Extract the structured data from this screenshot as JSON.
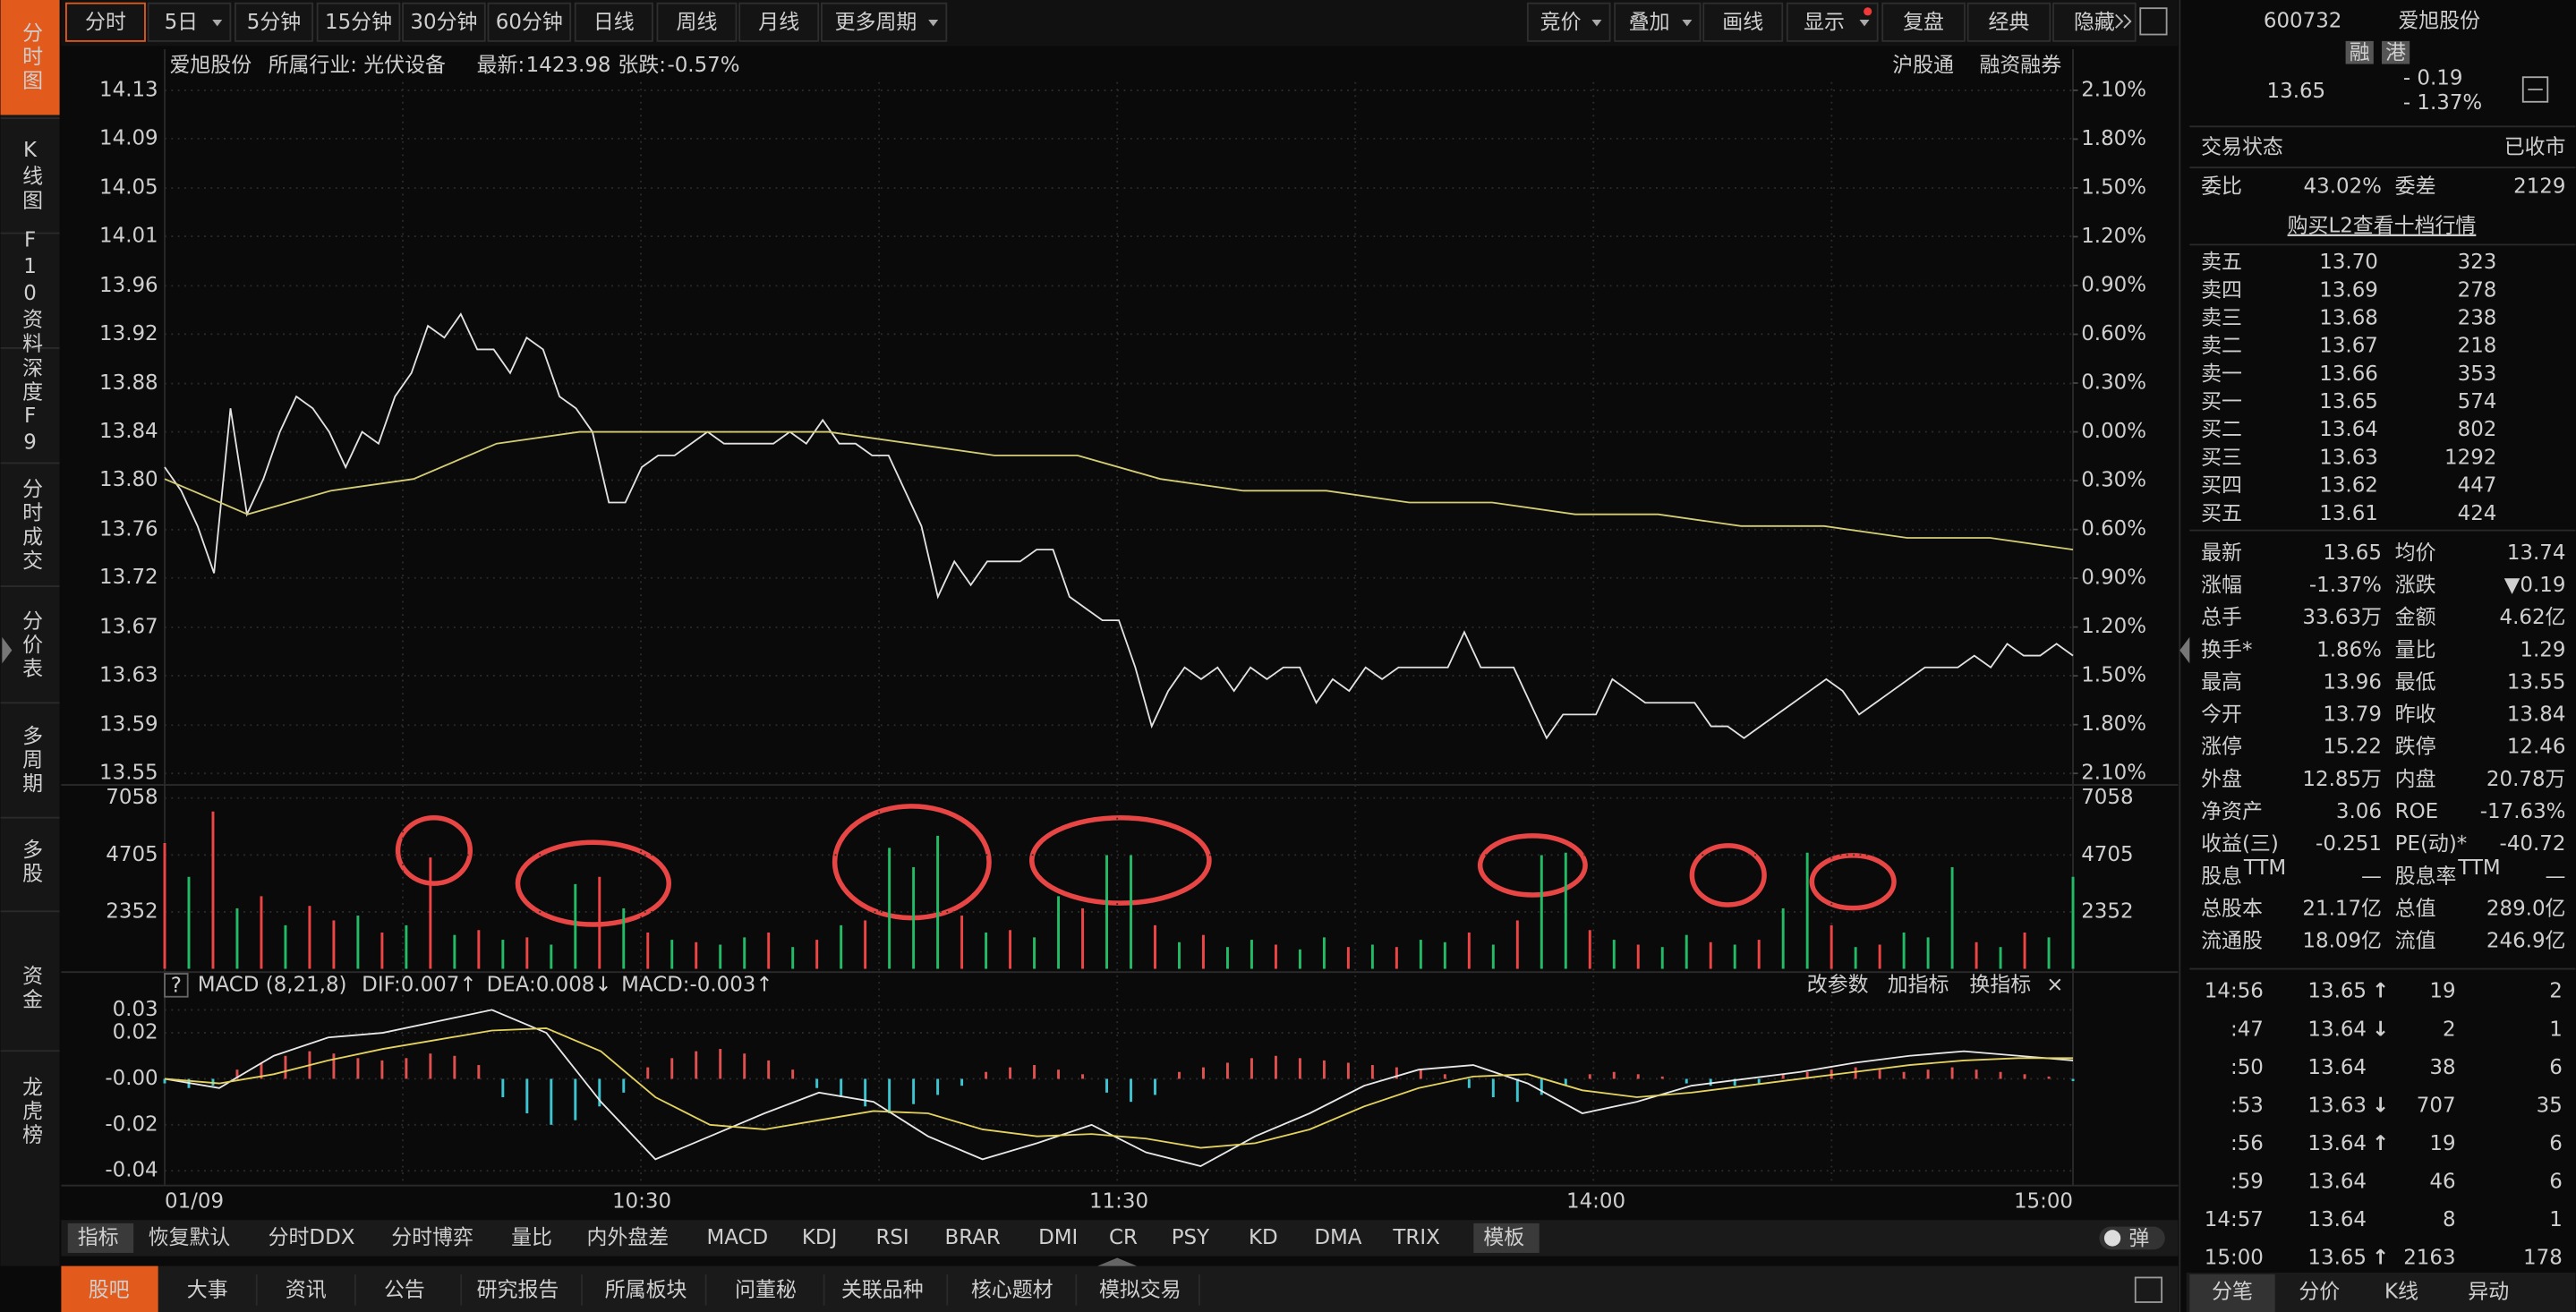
{
  "sidebar": {
    "tabs": [
      "分时图",
      "K线图",
      "F10资料",
      "深度F9",
      "分时成交",
      "分价表",
      "多周期",
      "多股",
      "资金",
      "龙虎榜"
    ]
  },
  "toolbar": {
    "periods": [
      "分时",
      "5日",
      "5分钟",
      "15分钟",
      "30分钟",
      "60分钟",
      "日线",
      "周线",
      "月线",
      "更多周期"
    ],
    "tools": [
      "竞价",
      "叠加",
      "画线",
      "显示",
      "复盘",
      "经典",
      "隐藏"
    ]
  },
  "info_bar": {
    "stock_name": "爱旭股份",
    "industry": "所属行业: 光伏设备",
    "latest_label": "最新:",
    "latest_value": "1423.98",
    "change_label": "张跌:",
    "change_value": "-0.57%",
    "links": [
      "沪股通",
      "融资融券"
    ]
  },
  "chart_data": [
    {
      "type": "line",
      "x_labels": [
        "01/09",
        "10:30",
        "11:30",
        "14:00",
        "15:00"
      ],
      "series": [
        {
          "color": "#e2e2e2",
          "values": [
            13.81,
            13.79,
            13.76,
            13.72,
            13.86,
            13.77,
            13.8,
            13.84,
            13.87,
            13.86,
            13.84,
            13.81,
            13.84,
            13.83,
            13.87,
            13.89,
            13.93,
            13.92,
            13.94,
            13.91,
            13.91,
            13.89,
            13.92,
            13.91,
            13.87,
            13.86,
            13.84,
            13.78,
            13.78,
            13.81,
            13.82,
            13.82,
            13.83,
            13.84,
            13.83,
            13.83,
            13.83,
            13.83,
            13.84,
            13.83,
            13.85,
            13.83,
            13.83,
            13.82,
            13.82,
            13.79,
            13.76,
            13.7,
            13.73,
            13.71,
            13.73,
            13.73,
            13.73,
            13.74,
            13.74,
            13.7,
            13.69,
            13.68,
            13.68,
            13.64,
            13.59,
            13.62,
            13.64,
            13.63,
            13.64,
            13.62,
            13.64,
            13.63,
            13.64,
            13.64,
            13.61,
            13.63,
            13.62,
            13.64,
            13.63,
            13.64,
            13.64,
            13.64,
            13.64,
            13.67,
            13.64,
            13.64,
            13.64,
            13.61,
            13.58,
            13.6,
            13.6,
            13.6,
            13.63,
            13.62,
            13.61,
            13.61,
            13.61,
            13.61,
            13.59,
            13.59,
            13.58,
            13.59,
            13.6,
            13.61,
            13.62,
            13.63,
            13.62,
            13.6,
            13.61,
            13.62,
            13.63,
            13.64,
            13.64,
            13.64,
            13.65,
            13.64,
            13.66,
            13.65,
            13.65,
            13.66,
            13.65
          ]
        },
        {
          "color": "#d4cd74",
          "values": [
            13.8,
            13.77,
            13.79,
            13.8,
            13.83,
            13.84,
            13.84,
            13.84,
            13.84,
            13.83,
            13.82,
            13.82,
            13.8,
            13.79,
            13.79,
            13.78,
            13.78,
            13.77,
            13.77,
            13.76,
            13.76,
            13.75,
            13.75,
            13.74
          ]
        }
      ],
      "ylim": [
        13.55,
        14.13
      ],
      "yticks": [
        {
          "value": 13.55,
          "label": "13.55"
        },
        {
          "value": 13.591,
          "label": "13.59"
        },
        {
          "value": 13.633,
          "label": "13.63"
        },
        {
          "value": 13.674,
          "label": "13.67"
        },
        {
          "value": 13.716,
          "label": "13.72"
        },
        {
          "value": 13.757,
          "label": "13.76"
        },
        {
          "value": 13.799,
          "label": "13.80"
        },
        {
          "value": 13.84,
          "label": "13.84"
        },
        {
          "value": 13.881,
          "label": "13.88"
        },
        {
          "value": 13.923,
          "label": "13.92"
        },
        {
          "value": 13.964,
          "label": "13.96"
        },
        {
          "value": 14.006,
          "label": "14.01"
        },
        {
          "value": 14.047,
          "label": "14.05"
        },
        {
          "value": 14.089,
          "label": "14.09"
        },
        {
          "value": 14.13,
          "label": "14.13"
        }
      ],
      "y2lim": [
        -2.1,
        2.1
      ],
      "y2ticks": [
        {
          "value": -2.1,
          "label": "2.10%"
        },
        {
          "value": -1.8,
          "label": "1.80%"
        },
        {
          "value": -1.5,
          "label": "1.50%"
        },
        {
          "value": -1.2,
          "label": "1.20%"
        },
        {
          "value": -0.9,
          "label": "0.90%"
        },
        {
          "value": -0.6,
          "label": "0.60%"
        },
        {
          "value": -0.3,
          "label": "0.30%"
        },
        {
          "value": 0,
          "label": "0.00%"
        },
        {
          "value": 0.3,
          "label": "0.30%"
        },
        {
          "value": 0.6,
          "label": "0.60%"
        },
        {
          "value": 0.9,
          "label": "0.90%"
        },
        {
          "value": 1.2,
          "label": "1.20%"
        },
        {
          "value": 1.5,
          "label": "1.50%"
        },
        {
          "value": 1.8,
          "label": "1.80%"
        },
        {
          "value": 2.1,
          "label": "2.10%"
        }
      ],
      "grid": true
    },
    {
      "type": "bar",
      "values": [
        5200,
        3800,
        6500,
        2500,
        3000,
        1800,
        2600,
        2000,
        2200,
        1500,
        1800,
        4600,
        1400,
        1600,
        1200,
        1300,
        1000,
        3500,
        3800,
        2500,
        1500,
        1200,
        1100,
        1000,
        1300,
        1500,
        900,
        1200,
        1800,
        2000,
        5000,
        4200,
        5500,
        2200,
        1500,
        1600,
        1300,
        3000,
        2500,
        4700,
        4700,
        1800,
        1100,
        1400,
        900,
        1200,
        1000,
        800,
        1300,
        900,
        1000,
        900,
        1200,
        1100,
        1500,
        1000,
        2000,
        4700,
        4800,
        1600,
        1200,
        1000,
        900,
        1400,
        1100,
        1000,
        1200,
        2500,
        4800,
        1800,
        900,
        1000,
        1500,
        1300,
        4200,
        1100,
        900,
        1500,
        1300,
        3800
      ],
      "colors": [
        "#e44",
        "#2b6",
        "#e44",
        "#2b6",
        "#e44",
        "#2b6",
        "#e44",
        "#e44",
        "#2b6",
        "#e44",
        "#2b6",
        "#e44",
        "#2b6",
        "#e44",
        "#2b6",
        "#e44",
        "#2b6",
        "#2b6",
        "#e44",
        "#2b6",
        "#e44",
        "#2b6",
        "#e44",
        "#2b6",
        "#2b6",
        "#e44",
        "#2b6",
        "#e44",
        "#2b6",
        "#e44",
        "#2b6",
        "#2b6",
        "#2b6",
        "#e44",
        "#2b6",
        "#e44",
        "#2b6",
        "#2b6",
        "#e44",
        "#2b6",
        "#2b6",
        "#e44",
        "#2b6",
        "#e44",
        "#2b6",
        "#2b6",
        "#e44",
        "#2b6",
        "#2b6",
        "#e44",
        "#2b6",
        "#e44",
        "#2b6",
        "#2b6",
        "#e44",
        "#2b6",
        "#e44",
        "#2b6",
        "#2b6",
        "#e44",
        "#2b6",
        "#e44",
        "#2b6",
        "#2b6",
        "#e44",
        "#2b6",
        "#e44",
        "#2b6",
        "#2b6",
        "#e44",
        "#2b6",
        "#e44",
        "#2b6",
        "#2b6",
        "#2b6",
        "#e44",
        "#2b6",
        "#e44",
        "#2b6",
        "#2b6"
      ],
      "ylim": [
        0,
        7058
      ],
      "yticks": [
        2352,
        4705,
        7058
      ],
      "grid": true
    },
    {
      "type": "macd",
      "values": [
        -0.002,
        -0.004,
        -0.003,
        0.004,
        0.007,
        0.01,
        0.012,
        0.011,
        0.009,
        0.008,
        0.009,
        0.011,
        0.01,
        0.006,
        -0.008,
        -0.015,
        -0.02,
        -0.018,
        -0.012,
        -0.006,
        0.005,
        0.009,
        0.012,
        0.013,
        0.011,
        0.008,
        0.004,
        -0.004,
        -0.008,
        -0.012,
        -0.015,
        -0.011,
        -0.007,
        -0.003,
        0.003,
        0.005,
        0.006,
        0.004,
        0.002,
        -0.006,
        -0.01,
        -0.007,
        0.003,
        0.005,
        0.007,
        0.009,
        0.01,
        0.009,
        0.008,
        0.007,
        0.006,
        0.005,
        0.004,
        0.002,
        -0.004,
        -0.008,
        -0.01,
        -0.007,
        -0.003,
        0.002,
        0.003,
        0.002,
        0.001,
        -0.002,
        -0.003,
        -0.003,
        -0.002,
        0.002,
        0.003,
        0.004,
        0.005,
        0.004,
        0.003,
        0.004,
        0.005,
        0.004,
        0.003,
        0.002,
        0.001,
        -0.001
      ],
      "series": [
        {
          "color": "#e8e8e8",
          "values": [
            0,
            -0.004,
            0.01,
            0.018,
            0.02,
            0.025,
            0.03,
            0.02,
            -0.01,
            -0.035,
            -0.025,
            -0.015,
            -0.006,
            -0.01,
            -0.025,
            -0.035,
            -0.028,
            -0.02,
            -0.032,
            -0.038,
            -0.025,
            -0.015,
            -0.003,
            0.004,
            0.006,
            -0.002,
            -0.015,
            -0.01,
            -0.003,
            0,
            0.003,
            0.007,
            0.01,
            0.012,
            0.01,
            0.008
          ]
        },
        {
          "color": "#e3d25e",
          "values": [
            0,
            -0.002,
            0.002,
            0.008,
            0.013,
            0.017,
            0.021,
            0.022,
            0.012,
            -0.008,
            -0.02,
            -0.022,
            -0.018,
            -0.014,
            -0.015,
            -0.022,
            -0.025,
            -0.024,
            -0.026,
            -0.03,
            -0.028,
            -0.022,
            -0.012,
            -0.004,
            0.001,
            0.002,
            -0.005,
            -0.008,
            -0.006,
            -0.003,
            0,
            0.003,
            0.006,
            0.008,
            0.009,
            0.009
          ]
        }
      ],
      "ylim": [
        -0.045,
        0.035
      ],
      "yticks": [
        0.03,
        0.02,
        {
          "value": 0,
          "label": "-0.00"
        },
        -0.02,
        -0.04
      ],
      "grid": true
    }
  ],
  "macd_header": {
    "help": "?",
    "name": "MACD (8,21,8)",
    "dif": "DIF:0.007↑",
    "dea": "DEA:0.008↓",
    "macd": "MACD:-0.003↑",
    "actions": [
      "改参数",
      "加指标",
      "换指标",
      "×"
    ]
  },
  "indicator_bar": {
    "items": [
      "指标",
      "恢复默认",
      "分时DDX",
      "分时博弈",
      "量比",
      "内外盘差",
      "MACD",
      "KDJ",
      "RSI",
      "BRAR",
      "DMI",
      "CR",
      "PSY",
      "KD",
      "DMA",
      "TRIX",
      "模板"
    ],
    "popup": "弹"
  },
  "bottom_bar": {
    "tabs": [
      "股吧",
      "大事",
      "资讯",
      "公告",
      "研究报告",
      "所属板块",
      "问董秘",
      "关联品种",
      "核心题材",
      "模拟交易"
    ]
  },
  "quote_panel": {
    "code": "600732",
    "name": "爱旭股份",
    "badges": [
      "融",
      "港"
    ],
    "price": "13.65",
    "change": "- 0.19",
    "change_pct": "- 1.37%",
    "status_label": "交易状态",
    "status": "已收市",
    "ratio_label": "委比",
    "ratio": "43.02%",
    "diff_label": "委差",
    "diff": "2129",
    "l2_link": "购买L2查看十档行情",
    "order_book": [
      {
        "label": "卖五",
        "price": "13.70",
        "volume": "323"
      },
      {
        "label": "卖四",
        "price": "13.69",
        "volume": "278"
      },
      {
        "label": "卖三",
        "price": "13.68",
        "volume": "238"
      },
      {
        "label": "卖二",
        "price": "13.67",
        "volume": "218"
      },
      {
        "label": "卖一",
        "price": "13.66",
        "volume": "353"
      },
      {
        "label": "买一",
        "price": "13.65",
        "volume": "574"
      },
      {
        "label": "买二",
        "price": "13.64",
        "volume": "802"
      },
      {
        "label": "买三",
        "price": "13.63",
        "volume": "1292"
      },
      {
        "label": "买四",
        "price": "13.62",
        "volume": "447"
      },
      {
        "label": "买五",
        "price": "13.61",
        "volume": "424"
      }
    ],
    "stats": [
      [
        {
          "label": "最新",
          "value": "13.65",
          "color": "#2fd35f"
        },
        {
          "label": "均价",
          "value": "13.74",
          "color": "#2fd35f"
        }
      ],
      [
        {
          "label": "涨幅",
          "value": "-1.37%",
          "color": "#2fd35f"
        },
        {
          "label": "涨跌",
          "value": "▼0.19",
          "color": "#2fd35f"
        }
      ],
      [
        {
          "label": "总手",
          "value": "33.63万",
          "color": "#f0d04a"
        },
        {
          "label": "金额",
          "value": "4.62亿",
          "color": "#33d6f0"
        }
      ],
      [
        {
          "label": "换手*",
          "value": "1.86%",
          "color": "#e8e8e8"
        },
        {
          "label": "量比",
          "value": "1.29",
          "color": "#f04a4a"
        }
      ],
      [
        {
          "label": "最高",
          "value": "13.96",
          "color": "#f04a4a"
        },
        {
          "label": "最低",
          "value": "13.55",
          "color": "#2fd35f"
        }
      ],
      [
        {
          "label": "今开",
          "value": "13.79",
          "color": "#2fd35f"
        },
        {
          "label": "昨收",
          "value": "13.84",
          "color": "#e8e8e8"
        }
      ],
      [
        {
          "label": "涨停",
          "value": "15.22",
          "color": "#f04a4a"
        },
        {
          "label": "跌停",
          "value": "12.46",
          "color": "#2fd35f"
        }
      ],
      [
        {
          "label": "外盘",
          "value": "12.85万",
          "color": "#f04a4a"
        },
        {
          "label": "内盘",
          "value": "20.78万",
          "color": "#2fd35f"
        }
      ],
      [
        {
          "label": "净资产",
          "value": "3.06",
          "color": "#e8e8e8"
        },
        {
          "label": "ROE",
          "value": "-17.63%",
          "color": "#e8e8e8"
        }
      ],
      [
        {
          "label": "收益(三)",
          "value": "-0.251",
          "color": "#e8e8e8"
        },
        {
          "label": "PE(动)*",
          "value": "-40.72",
          "color": "#e8e8e8"
        }
      ],
      [
        {
          "label": "股息",
          "sup": "TTM",
          "value": "—",
          "color": "#e8e8e8"
        },
        {
          "label": "股息率",
          "sup": "TTM",
          "value": "—",
          "color": "#e8e8e8"
        }
      ],
      [
        {
          "label": "总股本",
          "value": "21.17亿",
          "color": "#e8e8e8"
        },
        {
          "label": "总值",
          "value": "289.0亿",
          "color": "#e8e8e8"
        }
      ],
      [
        {
          "label": "流通股",
          "value": "18.09亿",
          "color": "#e8e8e8"
        },
        {
          "label": "流值",
          "value": "246.9亿",
          "color": "#e8e8e8"
        }
      ]
    ],
    "trades": [
      {
        "time": "14:56",
        "price": "13.65",
        "arrow": "↑",
        "volume": "19",
        "volume_color": "#f04a4a",
        "count": "2"
      },
      {
        "time": ":47",
        "price": "13.64",
        "arrow": "↓",
        "volume": "2",
        "volume_color": "#2fd35f",
        "count": "1"
      },
      {
        "time": ":50",
        "price": "13.64",
        "volume": "38",
        "volume_color": "#2fd35f",
        "count": "6"
      },
      {
        "time": ":53",
        "price": "13.63",
        "arrow": "↓",
        "volume": "707",
        "volume_color": "#2fd35f",
        "count": "35"
      },
      {
        "time": ":56",
        "price": "13.64",
        "arrow": "↑",
        "volume": "19",
        "volume_color": "#f04a4a",
        "count": "6"
      },
      {
        "time": ":59",
        "price": "13.64",
        "volume": "46",
        "volume_color": "#f04a4a",
        "count": "6"
      },
      {
        "time": "14:57",
        "price": "13.64",
        "volume": "8",
        "volume_color": "#2fd35f",
        "count": "1"
      },
      {
        "time": "15:00",
        "price": "13.65",
        "arrow": "↑",
        "volume": "2163",
        "volume_color": "#2fd35f",
        "count": "178"
      }
    ],
    "tabs": [
      "分笔",
      "分价",
      "K线",
      "异动"
    ]
  }
}
